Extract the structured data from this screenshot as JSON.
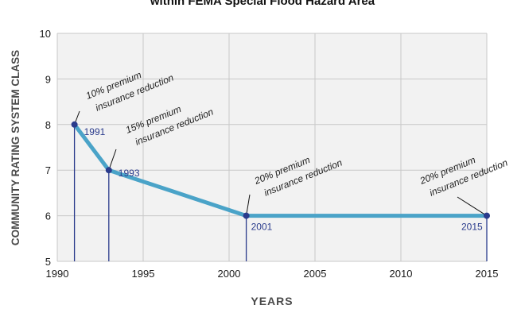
{
  "chart_data": {
    "type": "line",
    "title": "within FEMA Special Flood Hazard Area",
    "xlabel": "YEARS",
    "ylabel": "COMMUNITY RATING SYSTEM CLASS",
    "xlim": [
      1990,
      2015
    ],
    "ylim": [
      5,
      10
    ],
    "xticks": [
      1990,
      1995,
      2000,
      2005,
      2010,
      2015
    ],
    "yticks": [
      5,
      6,
      7,
      8,
      9,
      10
    ],
    "grid": true,
    "series": [
      {
        "x": [
          1991,
          1993,
          1995,
          1997,
          2001,
          2015
        ],
        "y": [
          8,
          7,
          6.75,
          6.5,
          6,
          6
        ]
      }
    ],
    "points": [
      {
        "x": 1991,
        "y": 8,
        "label": "1991",
        "anno1": "10% premium",
        "anno2": "insurance reduction"
      },
      {
        "x": 1993,
        "y": 7,
        "label": "1993",
        "anno1": "15% premium",
        "anno2": "insurance reduction"
      },
      {
        "x": 2001,
        "y": 6,
        "label": "2001",
        "anno1": "20% premium",
        "anno2": "insurance reduction"
      },
      {
        "x": 2015,
        "y": 6,
        "label": "2015",
        "anno1": "20% premium",
        "anno2": "insurance reduction"
      }
    ],
    "colors": {
      "line": "#4aa3c8",
      "marker": "#2a3b8c",
      "droplines": "#2a3b8c",
      "grid": "#c8c8c8",
      "plot_bg": "#f2f2f2"
    }
  }
}
